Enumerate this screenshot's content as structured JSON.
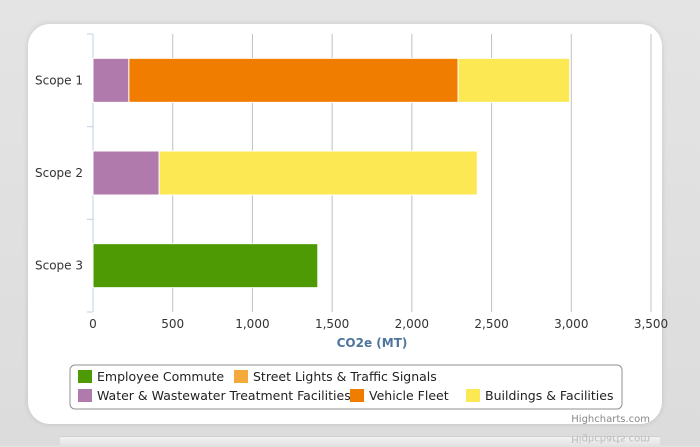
{
  "chart_data": {
    "type": "bar",
    "orientation": "horizontal",
    "stacked": true,
    "categories": [
      "Scope 1",
      "Scope 2",
      "Scope 3"
    ],
    "series": [
      {
        "name": "Employee Commute",
        "color": "#4d9a05",
        "values": [
          0,
          0,
          1410
        ]
      },
      {
        "name": "Street Lights & Traffic Signals",
        "color": "#f4a93b",
        "values": [
          0,
          0,
          0
        ]
      },
      {
        "name": "Water & Wastewater Treatment Facilities",
        "color": "#b07aad",
        "values": [
          225,
          415,
          0
        ]
      },
      {
        "name": "Vehicle Fleet",
        "color": "#f07c00",
        "values": [
          2065,
          0,
          0
        ]
      },
      {
        "name": "Buildings & Facilities",
        "color": "#fce853",
        "values": [
          700,
          1995,
          0
        ]
      }
    ],
    "xlabel": "CO2e (MT)",
    "xlim": [
      0,
      3500
    ],
    "xticks": [
      0,
      500,
      1000,
      1500,
      2000,
      2500,
      3000,
      3500
    ],
    "xtick_labels": [
      "0",
      "500",
      "1,000",
      "1,500",
      "2,000",
      "2,500",
      "3,000",
      "3,500"
    ],
    "grid": true,
    "legend_position": "bottom",
    "legend_order": [
      0,
      1,
      2,
      3,
      4
    ]
  },
  "credit": "Highcharts.com"
}
